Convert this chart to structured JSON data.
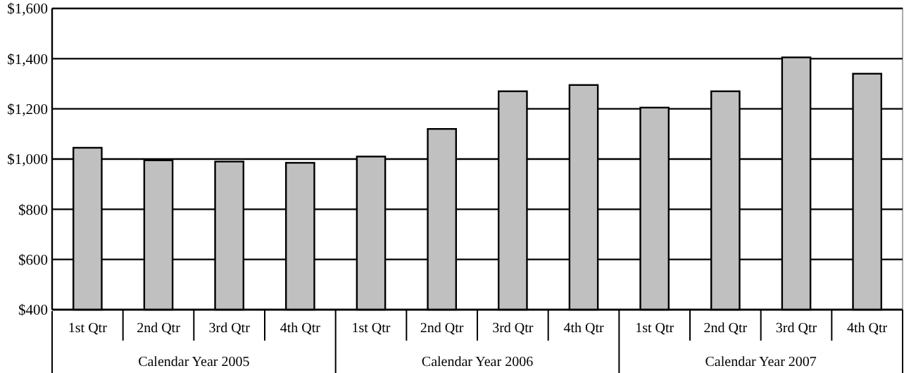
{
  "chart_data": {
    "type": "bar",
    "categories": [
      "1st Qtr",
      "2nd Qtr",
      "3rd Qtr",
      "4th Qtr",
      "1st Qtr",
      "2nd Qtr",
      "3rd Qtr",
      "4th Qtr",
      "1st Qtr",
      "2nd Qtr",
      "3rd Qtr",
      "4th Qtr"
    ],
    "values": [
      1045,
      995,
      990,
      985,
      1010,
      1120,
      1270,
      1295,
      1205,
      1270,
      1405,
      1340
    ],
    "color": "#c0c0c0",
    "ylim": [
      400,
      1600
    ],
    "yticks": [
      {
        "value": 400,
        "label": "$400"
      },
      {
        "value": 600,
        "label": "$600"
      },
      {
        "value": 800,
        "label": "$800"
      },
      {
        "value": 1000,
        "label": "$1,000"
      },
      {
        "value": 1200,
        "label": "$1,200"
      },
      {
        "value": 1400,
        "label": "$1,400"
      },
      {
        "value": 1600,
        "label": "$1,600"
      }
    ],
    "grid": "y",
    "annotations": [
      "Calendar Year 2005",
      "Calendar Year 2006",
      "Calendar Year 2007"
    ]
  }
}
